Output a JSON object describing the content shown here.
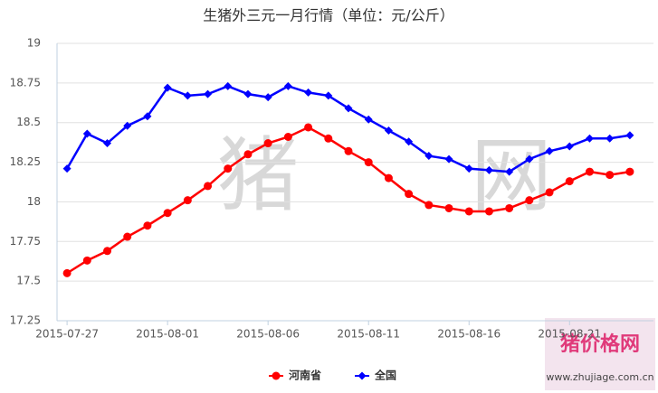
{
  "chart_data": {
    "type": "line",
    "title": "生猪外三元一月行情（单位：元/公斤）",
    "categories": [
      "2015-07-27",
      null,
      null,
      null,
      null,
      "2015-08-01",
      null,
      null,
      null,
      null,
      "2015-08-06",
      null,
      null,
      null,
      null,
      "2015-08-11",
      null,
      null,
      null,
      null,
      "2015-08-16",
      null,
      null,
      null,
      null,
      "2015-08-21",
      null,
      null,
      null
    ],
    "series": [
      {
        "name": "河南省",
        "color": "#ff0000",
        "marker": "circle",
        "values": [
          17.55,
          17.63,
          17.69,
          17.78,
          17.85,
          17.93,
          18.01,
          18.1,
          18.21,
          18.3,
          18.37,
          18.41,
          18.47,
          18.4,
          18.32,
          18.25,
          18.15,
          18.05,
          17.98,
          17.96,
          17.94,
          17.94,
          17.96,
          18.01,
          18.06,
          18.13,
          18.19,
          18.17,
          18.19
        ]
      },
      {
        "name": "全国",
        "color": "#0000ff",
        "marker": "diamond",
        "values": [
          18.21,
          18.43,
          18.37,
          18.48,
          18.54,
          18.72,
          18.67,
          18.68,
          18.73,
          18.68,
          18.66,
          18.73,
          18.69,
          18.67,
          18.59,
          18.52,
          18.45,
          18.38,
          18.29,
          18.27,
          18.21,
          18.2,
          18.19,
          18.27,
          18.32,
          18.35,
          18.4,
          18.4,
          18.42
        ]
      }
    ],
    "ylim": [
      17.25,
      19
    ],
    "yticks": [
      17.25,
      17.5,
      17.75,
      18,
      18.25,
      18.5,
      18.75,
      19
    ],
    "grid": true,
    "legend": "bottom",
    "watermark": {
      "left": "猪",
      "right": "网",
      "logo": "猪价格网",
      "url": "www.zhujiage.com.cn"
    }
  }
}
